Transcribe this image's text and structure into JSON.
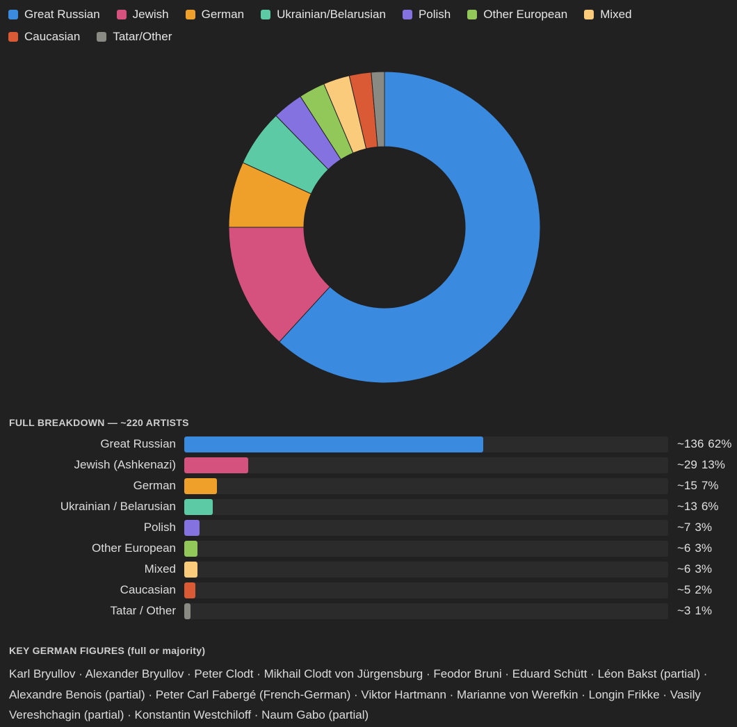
{
  "colors": {
    "background": "#212121",
    "track": "#2b2b2b"
  },
  "chart_data": [
    {
      "type": "pie",
      "donut": true,
      "legend_position": "top",
      "categories": [
        "Great Russian",
        "Jewish",
        "German",
        "Ukrainian/Belarusian",
        "Polish",
        "Other European",
        "Mixed",
        "Caucasian",
        "Tatar/Other"
      ],
      "values": [
        136,
        29,
        15,
        13,
        7,
        6,
        6,
        5,
        3
      ],
      "colors": [
        "#3a8be0",
        "#d6527e",
        "#efa02a",
        "#5ccaa5",
        "#8472e0",
        "#92c85a",
        "#fbcb7c",
        "#d95a34",
        "#8a8a84"
      ]
    },
    {
      "type": "bar",
      "orientation": "horizontal",
      "title": "FULL BREAKDOWN — ~220 ARTISTS",
      "categories": [
        "Great Russian",
        "Jewish (Ashkenazi)",
        "German",
        "Ukrainian / Belarusian",
        "Polish",
        "Other European",
        "Mixed",
        "Caucasian",
        "Tatar / Other"
      ],
      "values": [
        136,
        29,
        15,
        13,
        7,
        6,
        6,
        5,
        3
      ],
      "count_labels": [
        "~136",
        "~29",
        "~15",
        "~13",
        "~7",
        "~6",
        "~6",
        "~5",
        "~3"
      ],
      "percent_labels": [
        "62%",
        "13%",
        "7%",
        "6%",
        "3%",
        "3%",
        "3%",
        "2%",
        "1%"
      ],
      "colors": [
        "#3a8be0",
        "#d6527e",
        "#efa02a",
        "#5ccaa5",
        "#8472e0",
        "#92c85a",
        "#fbcb7c",
        "#d95a34",
        "#8a8a84"
      ],
      "xlim": [
        0,
        220
      ]
    }
  ],
  "figures": {
    "title": "KEY GERMAN FIGURES (full or majority)",
    "text": "Karl Bryullov · Alexander Bryullov · Peter Clodt · Mikhail Clodt von Jürgensburg · Feodor Bruni · Eduard Schütt · Léon Bakst (partial) · Alexandre Benois (partial) · Peter Carl Fabergé (French-German) · Viktor Hartmann · Marianne von Werefkin · Longin Frikke · Vasily Vereshchagin (partial) · Konstantin Westchiloff · Naum Gabo (partial)"
  }
}
